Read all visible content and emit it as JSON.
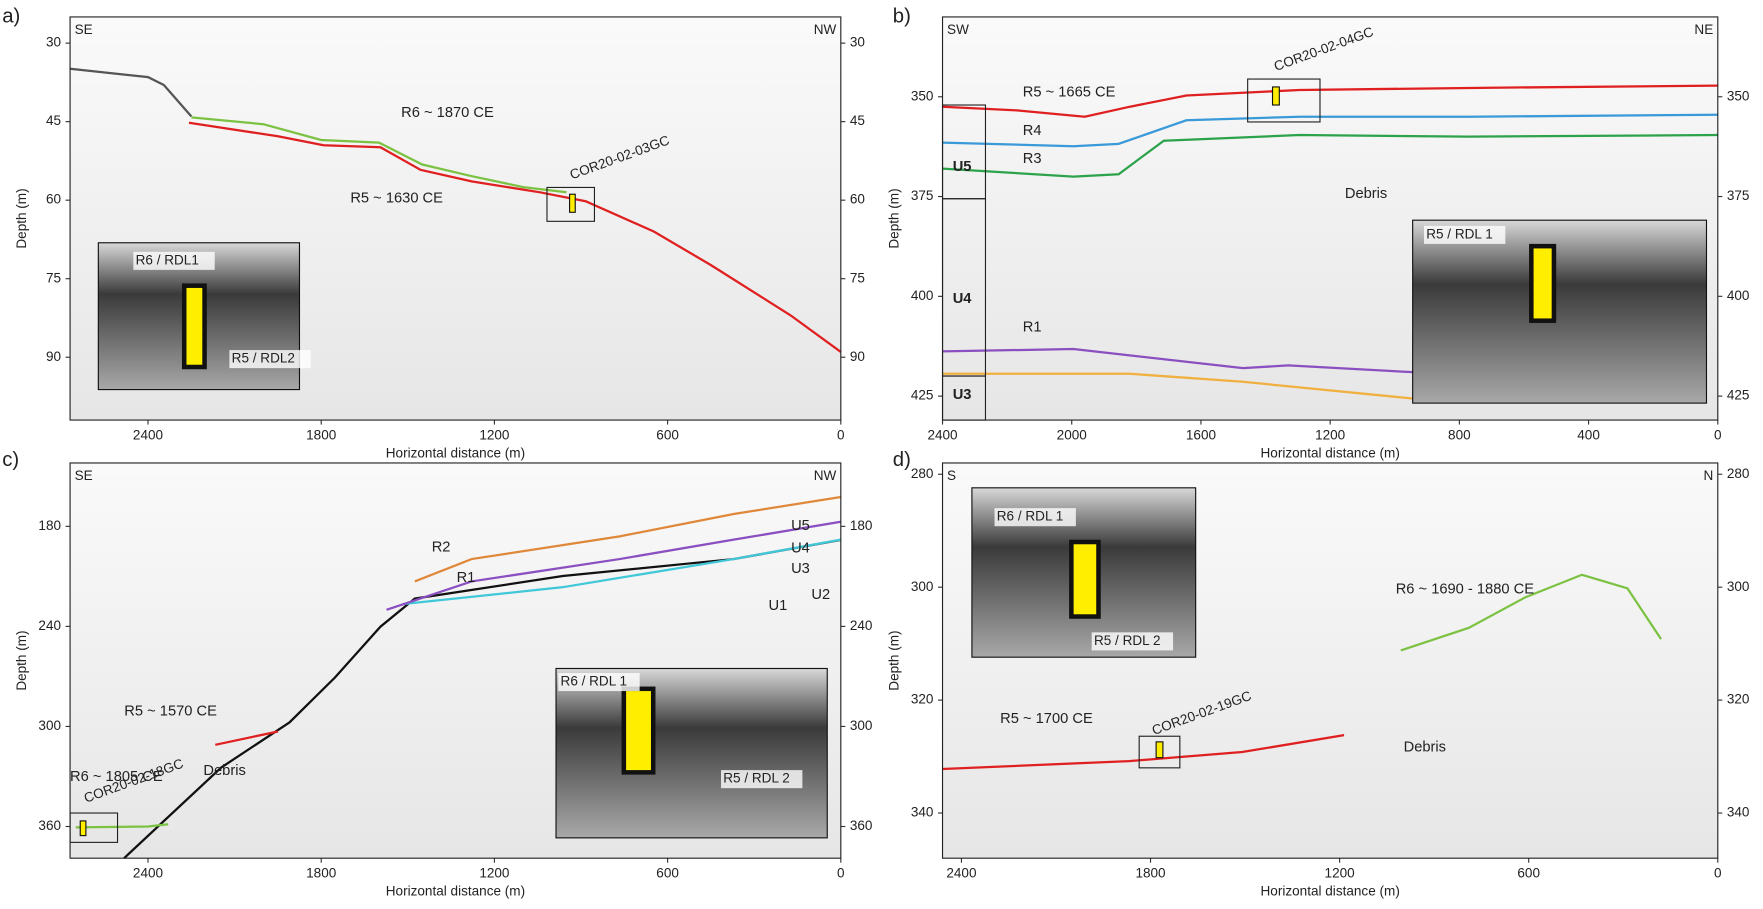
{
  "chart_data": [
    {
      "type": "line",
      "panel": "a)",
      "left_dir": "SE",
      "right_dir": "NW",
      "xlabel": "Horizontal distance (m)",
      "ylabel": "Depth (m)",
      "xlim": [
        2670,
        0
      ],
      "xticks": [
        2400,
        1800,
        1200,
        600,
        0
      ],
      "ylim": [
        25,
        102
      ],
      "yticks": [
        30,
        45,
        60,
        75,
        90
      ],
      "series": [
        {
          "color": "#555555",
          "x": [
            2670,
            2400,
            2345,
            2250
          ],
          "values": [
            34.9,
            36.5,
            38,
            44
          ]
        },
        {
          "name": "R6 ~ 1870 CE",
          "color": "#7cc242",
          "x": [
            2250,
            2000,
            1800,
            1600,
            1450,
            1280,
            1100,
            950
          ],
          "values": [
            44.2,
            45.5,
            48.5,
            49,
            53.2,
            55.4,
            57.5,
            58.5
          ]
        },
        {
          "name": "R5 ~ 1630 CE",
          "color": "#e02020",
          "x": [
            2258,
            1950,
            1792,
            1595,
            1456,
            1279,
            1042,
            884,
            647,
            450,
            174,
            0
          ],
          "values": [
            45.2,
            47.8,
            49.5,
            49.9,
            54.2,
            56.4,
            58.5,
            60.2,
            66,
            72.4,
            82,
            89
          ]
        }
      ],
      "core": "COR20-02-03GC",
      "annotations": [],
      "inset_labels": [
        "R6 / RDL1",
        "R5 / RDL2"
      ]
    },
    {
      "type": "line",
      "panel": "b)",
      "left_dir": "SW",
      "right_dir": "NE",
      "xlabel": "Horizontal distance (m)",
      "ylabel": "Depth (m)",
      "xlim": [
        2400,
        0
      ],
      "xticks": [
        2400,
        2000,
        1600,
        1200,
        800,
        400,
        0
      ],
      "ylim": [
        330,
        431
      ],
      "yticks": [
        350,
        375,
        400,
        425
      ],
      "series": [
        {
          "name": "R5 ~ 1665 CE",
          "color": "#e02020",
          "x": [
            2400,
            2170,
            1960,
            1820,
            1645,
            1295,
            770,
            0
          ],
          "values": [
            352.5,
            353.4,
            355,
            352.5,
            349.7,
            348.3,
            347.8,
            347.2
          ]
        },
        {
          "name": "R4",
          "color": "#3a9ad9",
          "x": [
            2400,
            1995,
            1855,
            1645,
            1295,
            770,
            0
          ],
          "values": [
            361.5,
            362.4,
            361.8,
            355.9,
            355,
            355,
            354.5
          ]
        },
        {
          "name": "R3",
          "color": "#2ca24a",
          "x": [
            2400,
            1995,
            1855,
            1715,
            1295,
            770,
            0
          ],
          "values": [
            368,
            370,
            369.4,
            361,
            359.6,
            360,
            359.6
          ]
        },
        {
          "name": "R1",
          "color": "#8a4fc0",
          "x": [
            2400,
            1995,
            1470,
            1330,
            945
          ],
          "values": [
            413.8,
            413.2,
            418,
            417.3,
            419
          ]
        },
        {
          "color": "#f0b040",
          "x": [
            2400,
            1820,
            1470,
            945
          ],
          "values": [
            419.4,
            419.4,
            421.4,
            425.6
          ]
        }
      ],
      "core": "COR20-02-04GC",
      "annotations": [
        "U5",
        "U4",
        "U3",
        "Debris"
      ],
      "inset_labels": [
        "R5 / RDL 1"
      ]
    },
    {
      "type": "line",
      "panel": "c)",
      "left_dir": "SE",
      "right_dir": "NW",
      "xlabel": "Horizontal distance (m)",
      "ylabel": "Depth (m)",
      "xlim": [
        2670,
        0
      ],
      "xticks": [
        2400,
        1800,
        1200,
        600,
        0
      ],
      "ylim": [
        142,
        379
      ],
      "yticks": [
        180,
        240,
        300,
        360
      ],
      "series": [
        {
          "color": "#111111",
          "x": [
            2483,
            2147,
            1910,
            1752,
            1595,
            1476,
            963,
            371,
            0
          ],
          "values": [
            379,
            324.7,
            297.6,
            270.6,
            240.2,
            223.3,
            209.8,
            199.6,
            188.1
          ]
        },
        {
          "color": "#40c8d8",
          "x": [
            1515,
            963,
            371,
            0
          ],
          "values": [
            226.6,
            216.5,
            199.6,
            188
          ]
        },
        {
          "name": "R1",
          "color": "#8a4fc0",
          "x": [
            1574,
            1279,
            766,
            371,
            0
          ],
          "values": [
            230,
            213,
            199.6,
            188,
            177.3
          ]
        },
        {
          "name": "R2",
          "color": "#e0883a",
          "x": [
            1476,
            1279,
            766,
            371,
            0
          ],
          "values": [
            213,
            199.6,
            186,
            172.6,
            162.4
          ]
        },
        {
          "name": "R5 ~ 1570 CE",
          "color": "#e02020",
          "x": [
            2167,
            1950
          ],
          "values": [
            311,
            303
          ]
        },
        {
          "name": "R6 ~ 1805 CE",
          "color": "#7cc242",
          "x": [
            2650,
            2400,
            2330
          ],
          "values": [
            360.5,
            360,
            358.6
          ]
        }
      ],
      "core": "COR20-02-18GC",
      "annotations": [
        "Debris",
        "U5",
        "U4",
        "U3",
        "U2",
        "U1"
      ],
      "inset_labels": [
        "R6 / RDL 1",
        "R5 / RDL 2"
      ]
    },
    {
      "type": "line",
      "panel": "d)",
      "left_dir": "S",
      "right_dir": "N",
      "xlabel": "Horizontal distance (m)",
      "ylabel": "Depth (m)",
      "xlim": [
        2460,
        0
      ],
      "xticks": [
        2400,
        1800,
        1200,
        600,
        0
      ],
      "ylim": [
        278,
        348
      ],
      "yticks": [
        280,
        300,
        320,
        340
      ],
      "series": [
        {
          "name": "R5 ~ 1700 CE",
          "color": "#e02020",
          "x": [
            2460,
            1868,
            1509,
            1186
          ],
          "values": [
            332.2,
            330.8,
            329.2,
            326.2
          ]
        },
        {
          "name": "R6 ~ 1690 - 1880 CE",
          "color": "#7cc242",
          "x": [
            1006,
            790,
            611,
            431,
            287,
            180
          ],
          "values": [
            311.2,
            307.2,
            301.8,
            297.8,
            300.2,
            309.2
          ]
        }
      ],
      "core": "COR20-02-19GC",
      "annotations": [
        "Debris"
      ],
      "inset_labels": [
        "R6 / RDL 1",
        "R5 / RDL 2"
      ]
    }
  ]
}
